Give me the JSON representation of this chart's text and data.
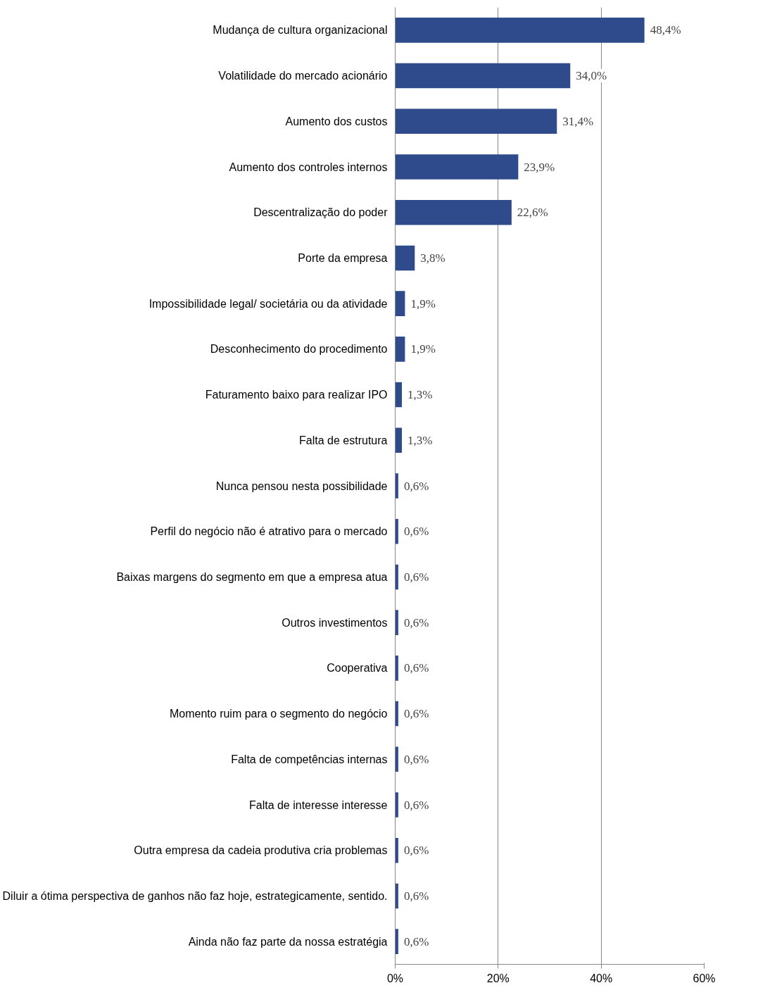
{
  "chart_data": {
    "type": "bar",
    "orientation": "horizontal",
    "categories": [
      "Mudança de cultura organizacional",
      "Volatilidade do mercado acionário",
      "Aumento dos custos",
      "Aumento dos controles internos",
      "Descentralização do poder",
      "Porte da empresa",
      "Impossibilidade legal/ societária ou da atividade",
      "Desconhecimento do procedimento",
      "Faturamento baixo para realizar IPO",
      "Falta de estrutura",
      "Nunca pensou nesta possibilidade",
      "Perfil do negócio não é atrativo para o mercado",
      "Baixas margens do segmento em que a empresa atua",
      "Outros investimentos",
      "Cooperativa",
      "Momento ruim para o segmento do negócio",
      "Falta de competências internas",
      "Falta de interesse interesse",
      "Outra empresa da cadeia produtiva cria problemas",
      "Diluir a ótima perspectiva de ganhos não faz hoje, estrategicamente, sentido.",
      "Ainda não faz parte da nossa estratégia"
    ],
    "values": [
      48.4,
      34.0,
      31.4,
      23.9,
      22.6,
      3.8,
      1.9,
      1.9,
      1.3,
      1.3,
      0.6,
      0.6,
      0.6,
      0.6,
      0.6,
      0.6,
      0.6,
      0.6,
      0.6,
      0.6,
      0.6
    ],
    "value_labels": [
      "48,4%",
      "34,0%",
      "31,4%",
      "23,9%",
      "22,6%",
      "3,8%",
      "1,9%",
      "1,9%",
      "1,3%",
      "1,3%",
      "0,6%",
      "0,6%",
      "0,6%",
      "0,6%",
      "0,6%",
      "0,6%",
      "0,6%",
      "0,6%",
      "0,6%",
      "0,6%",
      "0,6%"
    ],
    "color": "#2f4b8c",
    "xlim": [
      0,
      60
    ],
    "xticks": [
      {
        "value": 0,
        "label": "0%"
      },
      {
        "value": 20,
        "label": "20%"
      },
      {
        "value": 40,
        "label": "40%"
      },
      {
        "value": 60,
        "label": "60%"
      }
    ],
    "grid": "x"
  }
}
